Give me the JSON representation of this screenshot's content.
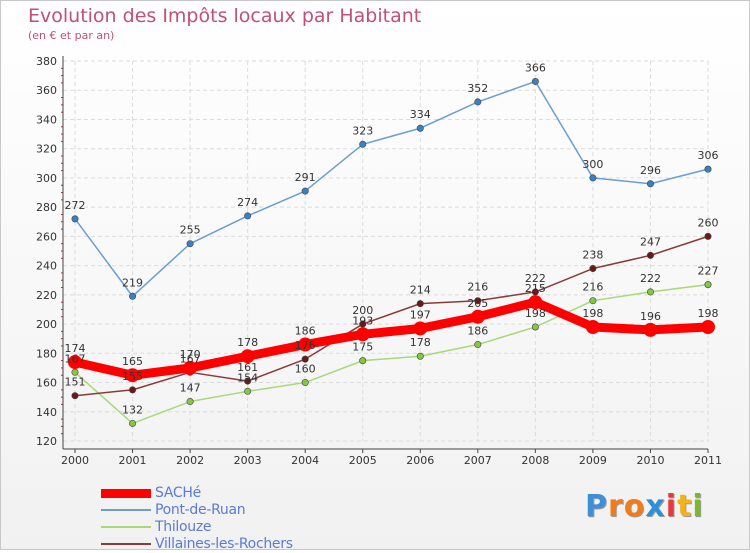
{
  "title": "Evolution des Impôts locaux par Habitant",
  "subtitle": "(en € et par an)",
  "logo": {
    "text": "Proxiti",
    "letters": [
      "P",
      "r",
      "o",
      "x",
      "i",
      "t",
      "i"
    ],
    "colors": [
      "#3f8fd8",
      "#f07d1a",
      "#f07d1a",
      "#2c8fd8",
      "#e43b3b",
      "#f2b21c",
      "#7ab82c"
    ]
  },
  "chart_data": {
    "type": "line",
    "title": "Evolution des Impôts locaux par Habitant",
    "subtitle": "(en € et par an)",
    "xlabel": "",
    "ylabel": "",
    "x": [
      "2000",
      "2001",
      "2002",
      "2003",
      "2004",
      "2005",
      "2006",
      "2007",
      "2008",
      "2009",
      "2010",
      "2011"
    ],
    "ylim": [
      120,
      380
    ],
    "yticks": [
      "120",
      "140",
      "160",
      "180",
      "200",
      "220",
      "240",
      "260",
      "280",
      "300",
      "320",
      "340",
      "360",
      "380"
    ],
    "grid": true,
    "legend_position": "bottom-left",
    "series": [
      {
        "name": "SACHé",
        "color": "#ff0000",
        "point_color": "#ff0000",
        "values": [
          174,
          165,
          170,
          178,
          186,
          193,
          197,
          205,
          215,
          198,
          196,
          198
        ],
        "labels": [
          "174",
          "165",
          "170",
          "178",
          "186",
          "193",
          "197",
          "205",
          "215",
          "198",
          "196",
          "198"
        ]
      },
      {
        "name": "Pont-de-Ruan",
        "color": "#6a9ed2",
        "point_color": "#3a80c4",
        "values": [
          272,
          219,
          255,
          274,
          291,
          323,
          334,
          352,
          366,
          300,
          296,
          306
        ],
        "labels": [
          "272",
          "219",
          "255",
          "274",
          "291",
          "323",
          "334",
          "352",
          "366",
          "300",
          "296",
          "306"
        ]
      },
      {
        "name": "Thilouze",
        "color": "#a8d878",
        "point_color": "#82c840",
        "values": [
          167,
          132,
          147,
          154,
          160,
          175,
          178,
          186,
          198,
          216,
          222,
          227
        ],
        "labels": [
          "167",
          "132",
          "147",
          "154",
          "160",
          "175",
          "178",
          "186",
          "198",
          "216",
          "222",
          "227"
        ]
      },
      {
        "name": "Villaines-les-Rochers",
        "color": "#8a3a3a",
        "point_color": "#6a1818",
        "values": [
          151,
          155,
          167,
          161,
          176,
          200,
          214,
          216,
          222,
          238,
          247,
          260
        ],
        "labels": [
          "151",
          "155",
          "167",
          "161",
          "176",
          "200",
          "214",
          "216",
          "222",
          "238",
          "247",
          "260"
        ]
      }
    ]
  }
}
